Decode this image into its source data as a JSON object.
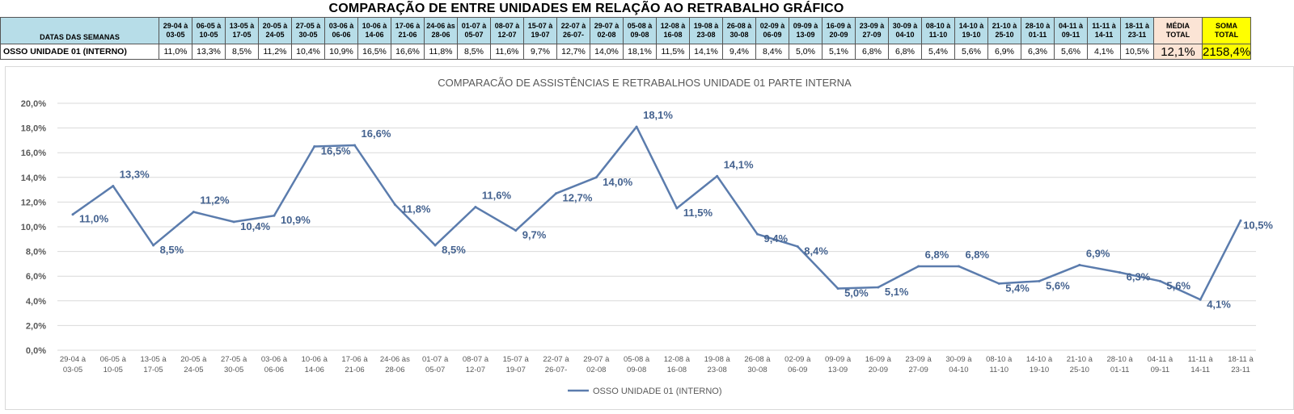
{
  "sheet": {
    "title": "COMPARAÇÃO DE ENTRE UNIDADES EM RELAÇÃO AO RETRABALHO GRÁFICO",
    "header_label": "DATAS DAS SEMANAS",
    "row_label": "OSSO UNIDADE 01 (INTERNO)",
    "weeks": [
      [
        "29-04 à",
        "03-05"
      ],
      [
        "06-05 à",
        "10-05"
      ],
      [
        "13-05 à",
        "17-05"
      ],
      [
        "20-05 à",
        "24-05"
      ],
      [
        "27-05 à",
        "30-05"
      ],
      [
        "03-06 à",
        "06-06"
      ],
      [
        "10-06 à",
        "14-06"
      ],
      [
        "17-06 à",
        "21-06"
      ],
      [
        "24-06 às",
        "28-06"
      ],
      [
        "01-07 à",
        "05-07"
      ],
      [
        "08-07 à",
        "12-07"
      ],
      [
        "15-07 à",
        "19-07"
      ],
      [
        "22-07 à",
        "26-07-"
      ],
      [
        "29-07 à",
        "02-08"
      ],
      [
        "05-08 à",
        "09-08"
      ],
      [
        "12-08 à",
        "16-08"
      ],
      [
        "19-08 à",
        "23-08"
      ],
      [
        "26-08 à",
        "30-08"
      ],
      [
        "02-09 à",
        "06-09"
      ],
      [
        "09-09 à",
        "13-09"
      ],
      [
        "16-09 à",
        "20-09"
      ],
      [
        "23-09 à",
        "27-09"
      ],
      [
        "30-09 à",
        "04-10"
      ],
      [
        "08-10 à",
        "11-10"
      ],
      [
        "14-10 à",
        "19-10"
      ],
      [
        "21-10 à",
        "25-10"
      ],
      [
        "28-10 à",
        "01-11"
      ],
      [
        "04-11 à",
        "09-11"
      ],
      [
        "11-11 à",
        "14-11"
      ],
      [
        "18-11 à",
        "23-11"
      ]
    ],
    "values_text": [
      "11,0%",
      "13,3%",
      "8,5%",
      "11,2%",
      "10,4%",
      "10,9%",
      "16,5%",
      "16,6%",
      "11,8%",
      "8,5%",
      "11,6%",
      "9,7%",
      "12,7%",
      "14,0%",
      "18,1%",
      "11,5%",
      "14,1%",
      "9,4%",
      "8,4%",
      "5,0%",
      "5,1%",
      "6,8%",
      "6,8%",
      "5,4%",
      "5,6%",
      "6,9%",
      "6,3%",
      "5,6%",
      "4,1%",
      "10,5%"
    ],
    "media_label": [
      "MÉDIA",
      "TOTAL"
    ],
    "media_value": "12,1%",
    "soma_label": [
      "SOMA",
      "TOTAL"
    ],
    "soma_value": "2158,4%"
  },
  "chart_data": {
    "type": "line",
    "title": "COMPARACÃO DE ASSISTÊNCIAS E RETRABALHOS UNIDADE 01 PARTE INTERNA",
    "categories": [
      [
        "29-04 à",
        "03-05"
      ],
      [
        "06-05 à",
        "10-05"
      ],
      [
        "13-05 à",
        "17-05"
      ],
      [
        "20-05 à",
        "24-05"
      ],
      [
        "27-05 à",
        "30-05"
      ],
      [
        "03-06 à",
        "06-06"
      ],
      [
        "10-06 à",
        "14-06"
      ],
      [
        "17-06 à",
        "21-06"
      ],
      [
        "24-06 às",
        "28-06"
      ],
      [
        "01-07 à",
        "05-07"
      ],
      [
        "08-07 à",
        "12-07"
      ],
      [
        "15-07 à",
        "19-07"
      ],
      [
        "22-07 à",
        "26-07-"
      ],
      [
        "29-07 à",
        "02-08"
      ],
      [
        "05-08 à",
        "09-08"
      ],
      [
        "12-08 à",
        "16-08"
      ],
      [
        "19-08 à",
        "23-08"
      ],
      [
        "26-08 à",
        "30-08"
      ],
      [
        "02-09 à",
        "06-09"
      ],
      [
        "09-09 à",
        "13-09"
      ],
      [
        "16-09 à",
        "20-09"
      ],
      [
        "23-09 à",
        "27-09"
      ],
      [
        "30-09 à",
        "04-10"
      ],
      [
        "08-10 à",
        "11-10"
      ],
      [
        "14-10 à",
        "19-10"
      ],
      [
        "21-10 à",
        "25-10"
      ],
      [
        "28-10 à",
        "01-11"
      ],
      [
        "04-11 à",
        "09-11"
      ],
      [
        "11-11 à",
        "14-11"
      ],
      [
        "18-11 à",
        "23-11"
      ]
    ],
    "series": [
      {
        "name": "OSSO UNIDADE 01 (INTERNO)",
        "color": "#5b7cad",
        "values": [
          11.0,
          13.3,
          8.5,
          11.2,
          10.4,
          10.9,
          16.5,
          16.6,
          11.8,
          8.5,
          11.6,
          9.7,
          12.7,
          14.0,
          18.1,
          11.5,
          14.1,
          9.4,
          8.4,
          5.0,
          5.1,
          6.8,
          6.8,
          5.4,
          5.6,
          6.9,
          6.3,
          5.6,
          4.1,
          10.5
        ],
        "labels": [
          "11,0%",
          "13,3%",
          "8,5%",
          "11,2%",
          "10,4%",
          "10,9%",
          "16,5%",
          "16,6%",
          "11,8%",
          "8,5%",
          "11,6%",
          "9,7%",
          "12,7%",
          "14,0%",
          "18,1%",
          "11,5%",
          "14,1%",
          "9,4%",
          "8,4%",
          "5,0%",
          "5,1%",
          "6,8%",
          "6,8%",
          "5,4%",
          "5,6%",
          "6,9%",
          "6,3%",
          "5,6%",
          "4,1%",
          "10,5%"
        ]
      }
    ],
    "ylim": [
      0,
      20
    ],
    "yticks": [
      0,
      2,
      4,
      6,
      8,
      10,
      12,
      14,
      16,
      18,
      20
    ],
    "ytick_labels": [
      "0,0%",
      "2,0%",
      "4,0%",
      "6,0%",
      "8,0%",
      "10,0%",
      "12,0%",
      "14,0%",
      "16,0%",
      "18,0%",
      "20,0%"
    ],
    "grid": true,
    "legend_position": "bottom",
    "label_color": "#44628f"
  }
}
